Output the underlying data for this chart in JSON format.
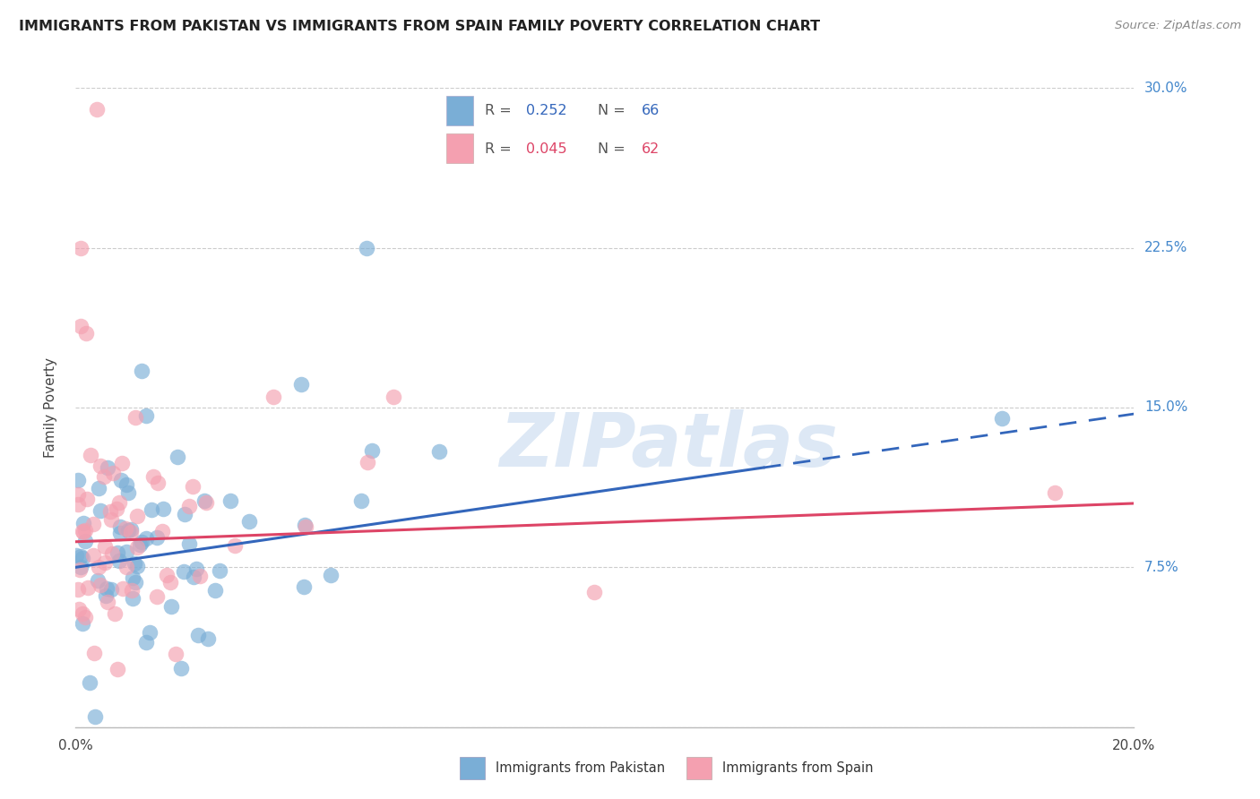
{
  "title": "IMMIGRANTS FROM PAKISTAN VS IMMIGRANTS FROM SPAIN FAMILY POVERTY CORRELATION CHART",
  "source": "Source: ZipAtlas.com",
  "xlabel_pakistan": "Immigrants from Pakistan",
  "xlabel_spain": "Immigrants from Spain",
  "ylabel": "Family Poverty",
  "xlim": [
    0.0,
    0.2
  ],
  "ylim": [
    0.0,
    0.3
  ],
  "R_pakistan": 0.252,
  "N_pakistan": 66,
  "R_spain": 0.045,
  "N_spain": 62,
  "color_pakistan": "#7aaed6",
  "color_spain": "#f4a0b0",
  "regression_pakistan_color": "#3366bb",
  "regression_spain_color": "#dd4466",
  "background_color": "#ffffff",
  "grid_color": "#cccccc",
  "ytick_color": "#4488cc",
  "title_color": "#222222",
  "source_color": "#888888",
  "legend_border_color": "#cccccc",
  "scatter_alpha": 0.65,
  "scatter_size": 160,
  "watermark_color": "#dde8f5",
  "watermark_text": "ZIPatlas"
}
